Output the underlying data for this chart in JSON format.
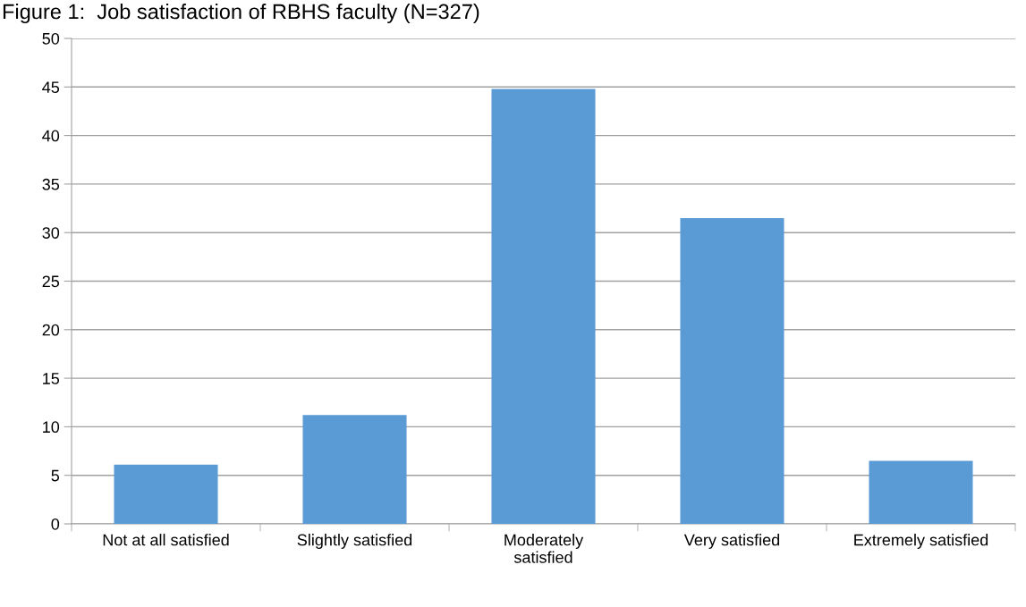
{
  "chart_data": {
    "type": "bar",
    "title": "Figure 1:  Job satisfaction of RBHS faculty (N=327)",
    "categories": [
      "Not at all satisfied",
      "Slightly satisfied",
      "Moderately\nsatisfied",
      "Very satisfied",
      "Extremely satisfied"
    ],
    "values": [
      6.1,
      11.2,
      44.8,
      31.5,
      6.5
    ],
    "color": "#5b9bd5",
    "ylim": [
      0,
      50
    ],
    "yticks": [
      0,
      5,
      10,
      15,
      20,
      25,
      30,
      35,
      40,
      45,
      50
    ],
    "grid": "y"
  }
}
